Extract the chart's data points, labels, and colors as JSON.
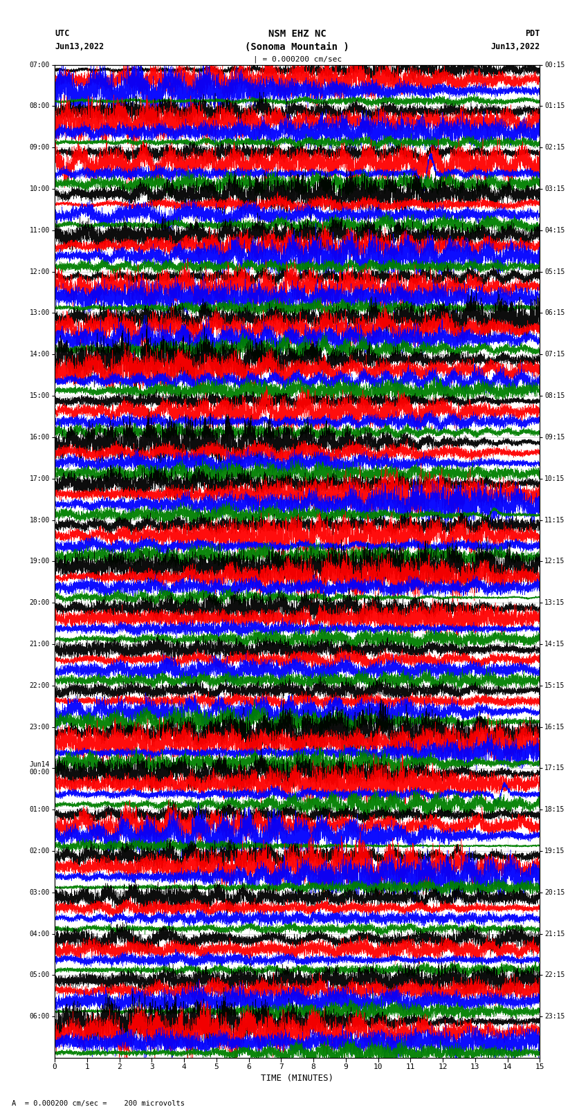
{
  "title_line1": "NSM EHZ NC",
  "title_line2": "(Sonoma Mountain )",
  "scale_text": "| = 0.000200 cm/sec",
  "utc_label": "UTC",
  "pdt_label": "PDT",
  "date_left": "Jun13,2022",
  "date_right": "Jun13,2022",
  "xlabel": "TIME (MINUTES)",
  "footer": "A  = 0.000200 cm/sec =    200 microvolts",
  "left_times": [
    "07:00",
    "08:00",
    "09:00",
    "10:00",
    "11:00",
    "12:00",
    "13:00",
    "14:00",
    "15:00",
    "16:00",
    "17:00",
    "18:00",
    "19:00",
    "20:00",
    "21:00",
    "22:00",
    "23:00",
    "Jun14\n00:00",
    "01:00",
    "02:00",
    "03:00",
    "04:00",
    "05:00",
    "06:00"
  ],
  "right_times": [
    "00:15",
    "01:15",
    "02:15",
    "03:15",
    "04:15",
    "05:15",
    "06:15",
    "07:15",
    "08:15",
    "09:15",
    "10:15",
    "11:15",
    "12:15",
    "13:15",
    "14:15",
    "15:15",
    "16:15",
    "17:15",
    "18:15",
    "19:15",
    "20:15",
    "21:15",
    "22:15",
    "23:15"
  ],
  "n_rows": 24,
  "traces_per_row": 4,
  "colors": [
    "black",
    "red",
    "blue",
    "green"
  ],
  "minutes_per_row": 15,
  "bg_color": "#ffffff",
  "grid_color": "#aaaaaa",
  "figsize": [
    8.5,
    16.13
  ],
  "dpi": 100
}
